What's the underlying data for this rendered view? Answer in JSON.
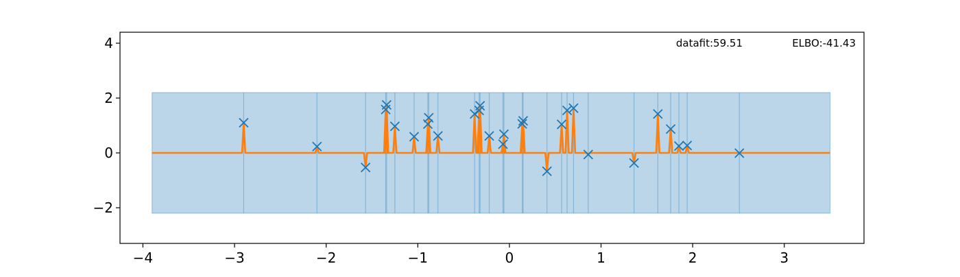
{
  "chart_data": {
    "type": "line",
    "title": "",
    "xlabel": "",
    "ylabel": "",
    "xlim": [
      -4.25,
      3.87
    ],
    "ylim": [
      -3.3,
      4.4
    ],
    "xticks": [
      -4,
      -3,
      -2,
      -1,
      0,
      1,
      2,
      3
    ],
    "xtick_labels": [
      "−4",
      "−3",
      "−2",
      "−1",
      "0",
      "1",
      "2",
      "3"
    ],
    "yticks": [
      -2,
      0,
      2,
      4
    ],
    "ytick_labels": [
      "−2",
      "0",
      "2",
      "4"
    ],
    "grid": false,
    "annotations": {
      "datafit": "datafit:59.51",
      "elbo": "ELBO:-41.43"
    },
    "colors": {
      "points": "#1f77b4",
      "mean": "#ff7f0e",
      "band": "#1f77b4"
    },
    "x_range": [
      -3.9,
      3.5
    ],
    "mean_baseline": 0.0,
    "band_half_width": 2.2,
    "points": [
      {
        "x": -2.9,
        "y": 1.1
      },
      {
        "x": -2.1,
        "y": 0.23
      },
      {
        "x": -1.57,
        "y": -0.53
      },
      {
        "x": -1.35,
        "y": 1.58
      },
      {
        "x": -1.34,
        "y": 1.75
      },
      {
        "x": -1.25,
        "y": 0.97
      },
      {
        "x": -1.04,
        "y": 0.59
      },
      {
        "x": -0.89,
        "y": 1.05
      },
      {
        "x": -0.88,
        "y": 1.28
      },
      {
        "x": -0.78,
        "y": 0.62
      },
      {
        "x": -0.38,
        "y": 1.42
      },
      {
        "x": -0.33,
        "y": 1.55
      },
      {
        "x": -0.32,
        "y": 1.72
      },
      {
        "x": -0.22,
        "y": 0.62
      },
      {
        "x": -0.07,
        "y": 0.32
      },
      {
        "x": -0.06,
        "y": 0.68
      },
      {
        "x": 0.14,
        "y": 1.06
      },
      {
        "x": 0.15,
        "y": 1.17
      },
      {
        "x": 0.41,
        "y": -0.67
      },
      {
        "x": 0.57,
        "y": 1.04
      },
      {
        "x": 0.63,
        "y": 1.55
      },
      {
        "x": 0.7,
        "y": 1.63
      },
      {
        "x": 0.86,
        "y": -0.06
      },
      {
        "x": 1.36,
        "y": -0.37
      },
      {
        "x": 1.62,
        "y": 1.42
      },
      {
        "x": 1.76,
        "y": 0.87
      },
      {
        "x": 1.85,
        "y": 0.25
      },
      {
        "x": 1.94,
        "y": 0.27
      },
      {
        "x": 2.51,
        "y": -0.01
      }
    ]
  }
}
